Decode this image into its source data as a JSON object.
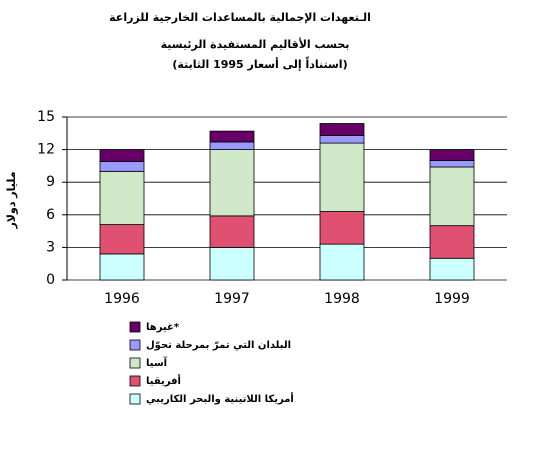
{
  "chart_data": {
    "type": "stacked-bar",
    "title": [
      "الـتعهدات الإجمالية بالمساعدات الخارجية للزراعة",
      "بحسب الأقاليم المستفيدة الرئيسية",
      "(استناداً إلى أسعار 1995 الثابتة)"
    ],
    "y_label": "مليار دولار",
    "categories": [
      "1996",
      "1997",
      "1998",
      "1999"
    ],
    "series": [
      {
        "name": "أمريكا اللاتينية والبحر الكاريبي",
        "color": "#ccffff",
        "values": [
          2.4,
          3.0,
          3.3,
          2.0
        ]
      },
      {
        "name": "أفريقيا",
        "color": "#e05070",
        "values": [
          2.7,
          2.9,
          3.0,
          3.0
        ]
      },
      {
        "name": "آسيا",
        "color": "#cfe8c8",
        "values": [
          4.9,
          6.1,
          6.3,
          5.4
        ]
      },
      {
        "name": "البلدان التي تمرّ بمرحلة تحوّل",
        "color": "#9999ff",
        "values": [
          0.9,
          0.7,
          0.7,
          0.6
        ]
      },
      {
        "name": "غيرها*",
        "color": "#660066",
        "values": [
          1.1,
          1.0,
          1.1,
          1.0
        ]
      }
    ],
    "ylim": [
      0,
      15
    ],
    "yticks": [
      0,
      3,
      6,
      9,
      12,
      15
    ],
    "grid": true
  }
}
